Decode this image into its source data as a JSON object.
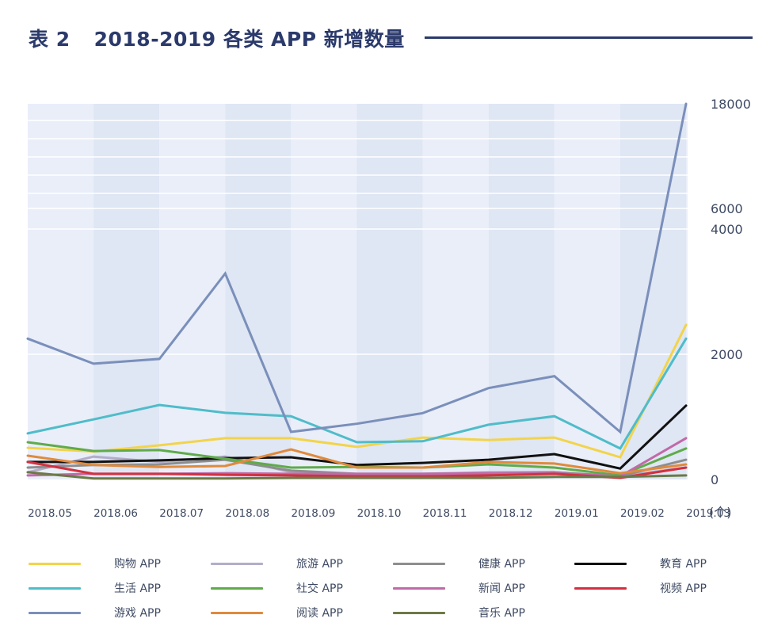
{
  "header": {
    "table_no": "表 2",
    "title": "2018-2019 各类 APP 新增数量"
  },
  "chart_data": {
    "type": "line",
    "title": "2018-2019 各类 APP 新增数量",
    "xlabel": "",
    "ylabel": "(个)",
    "y_unit": "(个)",
    "ylim": [
      0,
      18000
    ],
    "y_scale": "piecewise (broken axis: 0-4000 linear, compressed above 4000)",
    "y_ticks": [
      0,
      2000,
      4000,
      6000,
      18000
    ],
    "y_tick_labels": [
      "0",
      "2000",
      "4000",
      "6000",
      "18000"
    ],
    "y_axis_position": "right",
    "grid": true,
    "legend_position": "bottom",
    "categories": [
      "2018.05",
      "2018.06",
      "2018.07",
      "2018.08",
      "2018.09",
      "2018.10",
      "2018.11",
      "2018.12",
      "2019.01",
      "2019.02",
      "2019.03"
    ],
    "series": [
      {
        "name": "购物 APP",
        "color": "#f2d44a",
        "values": [
          505,
          445,
          545,
          660,
          660,
          520,
          670,
          630,
          670,
          355,
          2470
        ]
      },
      {
        "name": "旅游 APP",
        "color": "#b3adc9",
        "values": [
          115,
          365,
          280,
          365,
          115,
          75,
          90,
          115,
          115,
          50,
          190
        ]
      },
      {
        "name": "健康 APP",
        "color": "#8e8e8e",
        "values": [
          190,
          230,
          240,
          315,
          140,
          90,
          90,
          100,
          115,
          50,
          315
        ]
      },
      {
        "name": "教育 APP",
        "color": "#111111",
        "values": [
          280,
          280,
          305,
          340,
          355,
          230,
          265,
          315,
          405,
          175,
          1180
        ]
      },
      {
        "name": "生活 APP",
        "color": "#4fbcc9",
        "values": [
          735,
          960,
          1190,
          1065,
          1010,
          595,
          610,
          875,
          1010,
          495,
          2250
        ]
      },
      {
        "name": "社交 APP",
        "color": "#5fab4a",
        "values": [
          595,
          455,
          470,
          330,
          190,
          200,
          190,
          240,
          190,
          65,
          495
        ]
      },
      {
        "name": "新闻 APP",
        "color": "#c06aa8",
        "values": [
          65,
          90,
          90,
          100,
          90,
          90,
          90,
          100,
          100,
          50,
          660
        ]
      },
      {
        "name": "视频 APP",
        "color": "#d3303f",
        "values": [
          280,
          90,
          90,
          75,
          65,
          50,
          50,
          65,
          90,
          25,
          190
        ]
      },
      {
        "name": "游戏 APP",
        "color": "#7a8fba",
        "values": [
          2250,
          1850,
          1925,
          3290,
          760,
          890,
          1060,
          1460,
          1650,
          760,
          18000
        ]
      },
      {
        "name": "阅读 APP",
        "color": "#e08a3c",
        "values": [
          380,
          230,
          200,
          215,
          480,
          190,
          190,
          280,
          255,
          100,
          240
        ]
      },
      {
        "name": "音乐 APP",
        "color": "#6b7a45",
        "values": [
          115,
          15,
          15,
          15,
          25,
          25,
          25,
          25,
          40,
          40,
          65
        ]
      }
    ]
  },
  "legend_order": [
    0,
    1,
    2,
    3,
    4,
    5,
    6,
    7,
    8,
    9,
    10
  ],
  "colors": {
    "title": "#2b3a6b",
    "plot_bg_light": "#e9eef9",
    "plot_bg_dark": "#dfe6f4",
    "grid": "#ffffff",
    "axis_text": "#3e4a63"
  }
}
